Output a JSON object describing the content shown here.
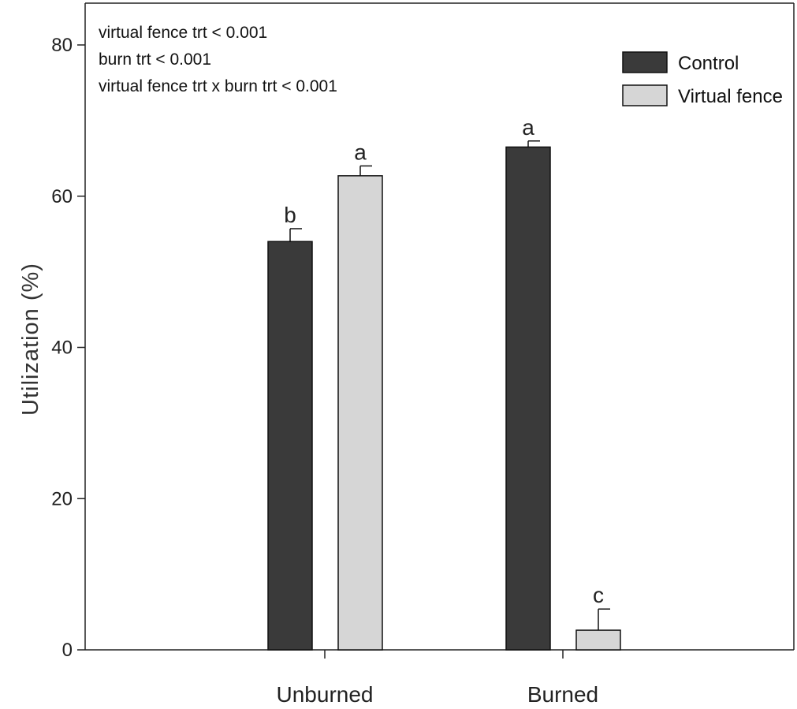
{
  "chart_data": {
    "type": "bar",
    "ylabel": "Utilization (%)",
    "xlabel": "",
    "ylim": [
      0,
      80
    ],
    "yticks": [
      "0",
      "20",
      "40",
      "60",
      "80"
    ],
    "categories": [
      "Unburned",
      "Burned"
    ],
    "series": [
      {
        "name": "Control",
        "values": [
          54,
          66.5
        ],
        "errors": [
          1.7,
          0.8
        ],
        "letters": [
          "b",
          "a"
        ],
        "color": "#3a3a3a"
      },
      {
        "name": "Virtual fence",
        "values": [
          62.7,
          2.6
        ],
        "errors": [
          1.3,
          2.8
        ],
        "letters": [
          "a",
          "c"
        ],
        "color": "#d6d6d6"
      }
    ],
    "annotations": [
      "virtual fence trt < 0.001",
      "burn trt < 0.001",
      "virtual fence trt x burn trt < 0.001"
    ],
    "legend_position": "top-right",
    "grid": false
  }
}
